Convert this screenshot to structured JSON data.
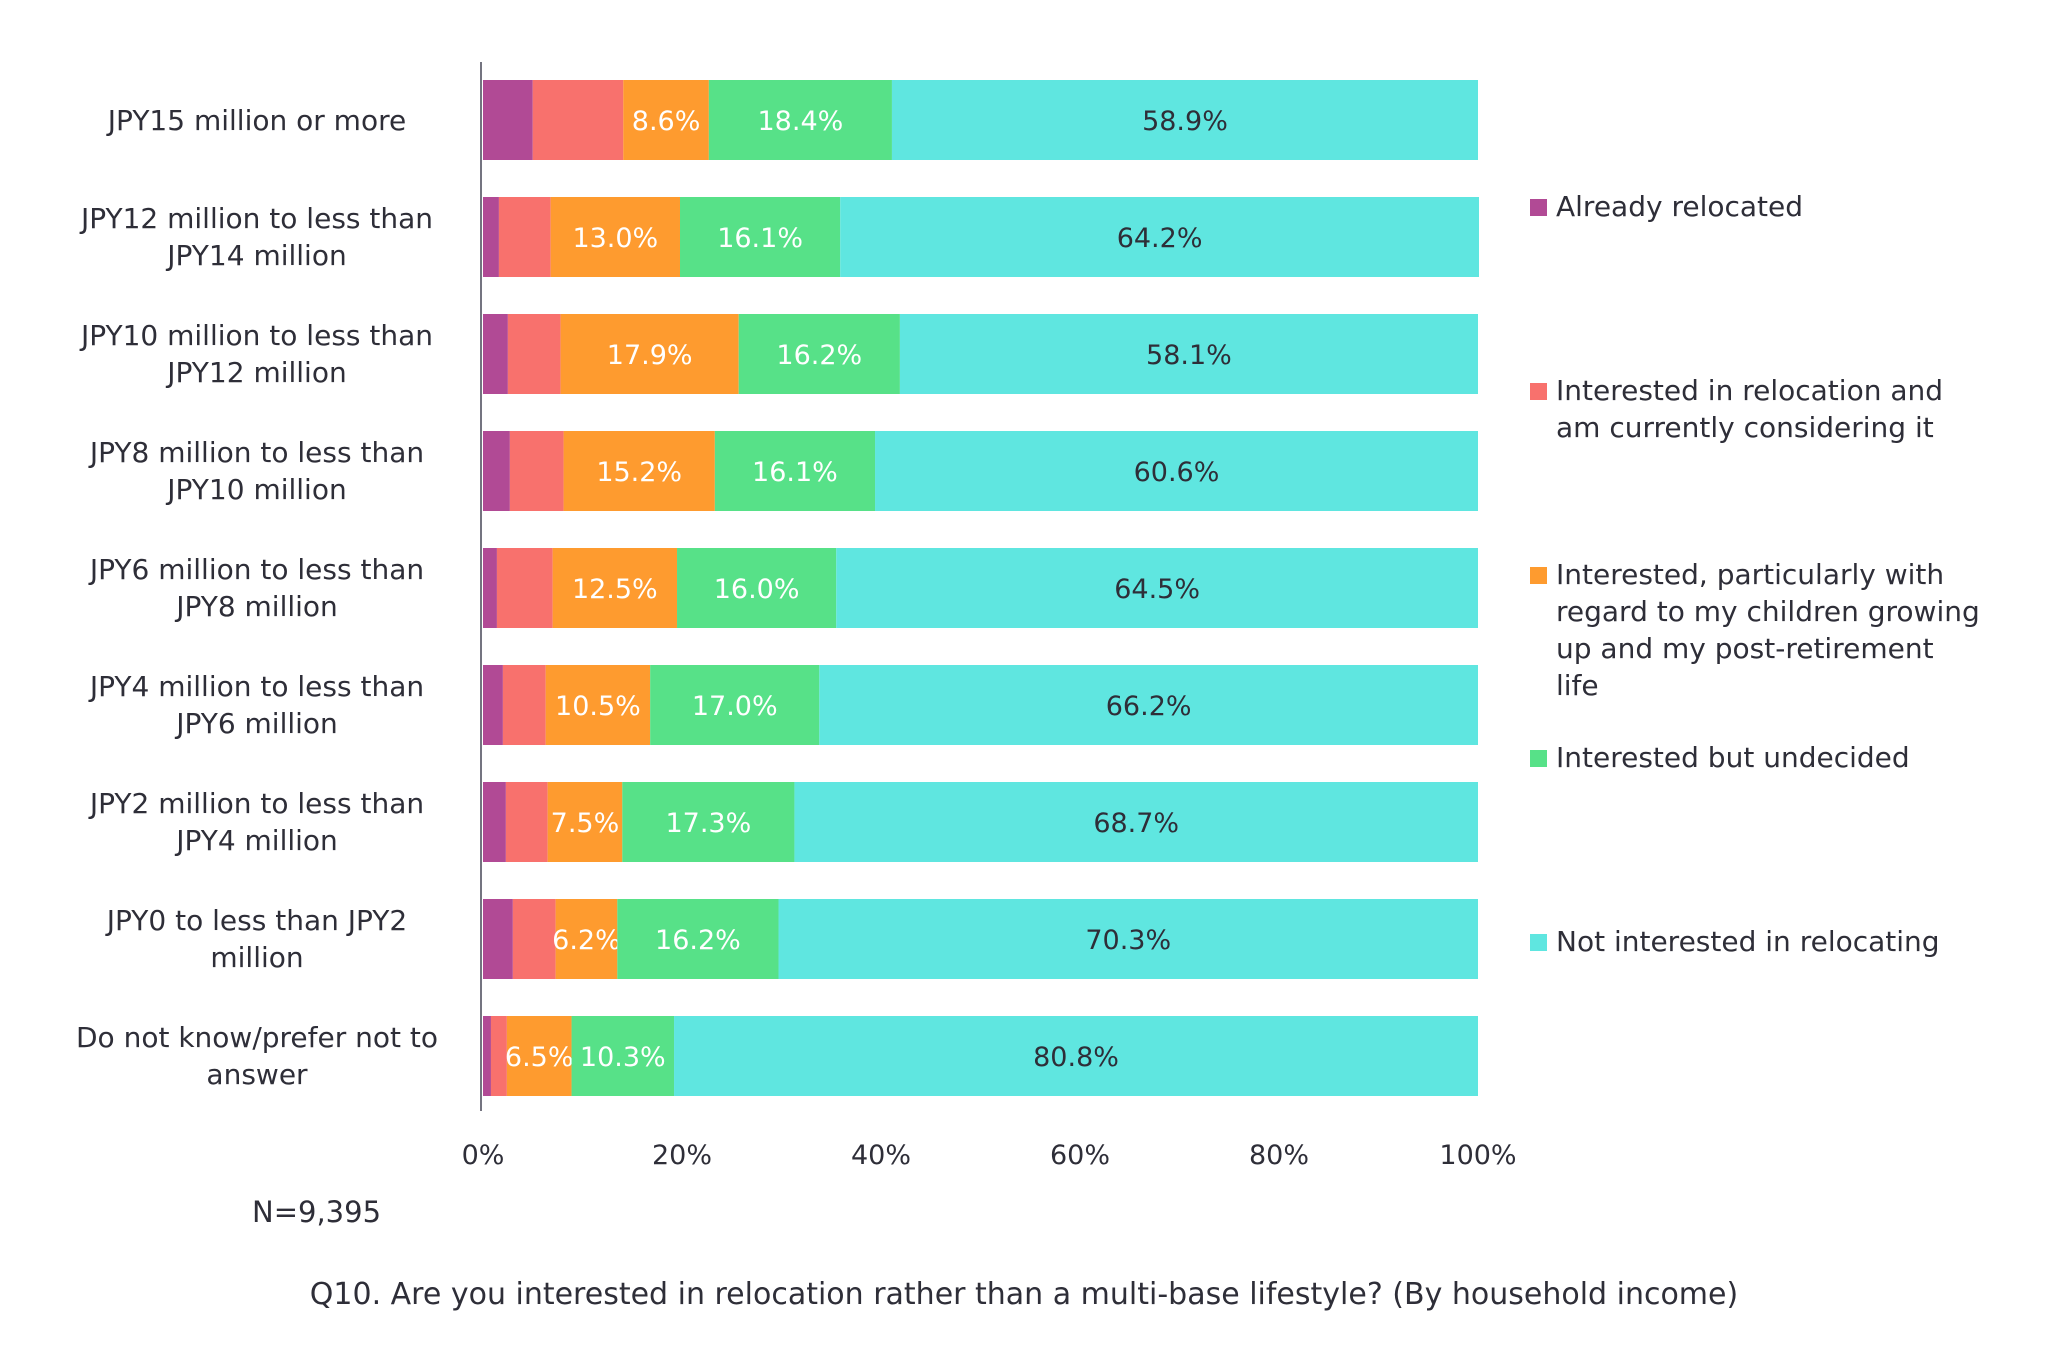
{
  "chart_data": {
    "type": "bar",
    "orientation": "horizontal",
    "stacked": true,
    "title": "Q10. Are you interested in relocation rather than a multi-base lifestyle? (By household income)",
    "note": "N=9,395",
    "categories": [
      "JPY15 million or more",
      "JPY12 million to less than JPY14 million",
      "JPY10 million to less than JPY12 million",
      "JPY8 million to less than JPY10 million",
      "JPY6 million to less than JPY8 million",
      "JPY4 million to less than JPY6 million",
      "JPY2 million to less than JPY4 million",
      "JPY0 to less than JPY2 million",
      "Do not know/prefer not to answer"
    ],
    "category_lines": [
      [
        "JPY15 million or more"
      ],
      [
        "JPY12 million to less than",
        "JPY14 million"
      ],
      [
        "JPY10 million to less than",
        "JPY12 million"
      ],
      [
        "JPY8 million to less than",
        "JPY10 million"
      ],
      [
        "JPY6 million to less than",
        "JPY8 million"
      ],
      [
        "JPY4 million to less than",
        "JPY6 million"
      ],
      [
        "JPY2 million to less than",
        "JPY4 million"
      ],
      [
        "JPY0 to less than JPY2",
        "million"
      ],
      [
        "Do not know/prefer not to",
        "answer"
      ]
    ],
    "series": [
      {
        "name": "Already relocated",
        "color": "#b14a95",
        "values": [
          5.0,
          1.6,
          2.5,
          2.7,
          1.4,
          2.0,
          2.3,
          3.0,
          0.8
        ],
        "labels": [
          "",
          "",
          "",
          "",
          "",
          "",
          "",
          "",
          ""
        ]
      },
      {
        "name": "Interested in relocation and am currently considering it",
        "legend_lines": [
          "Interested in relocation and",
          "am currently considering it"
        ],
        "color": "#f8716d",
        "values": [
          9.1,
          5.2,
          5.3,
          5.4,
          5.6,
          4.3,
          4.2,
          4.3,
          1.6
        ],
        "labels": [
          "",
          "",
          "",
          "",
          "",
          "",
          "",
          "",
          ""
        ]
      },
      {
        "name": "Interested, particularly with regard to my children growing up and my post-retirement life",
        "legend_lines": [
          "Interested, particularly with",
          "regard to my children growing",
          "up and my post-retirement",
          "life"
        ],
        "color": "#fe9b2f",
        "values": [
          8.6,
          13.0,
          17.9,
          15.2,
          12.5,
          10.5,
          7.5,
          6.2,
          6.5
        ],
        "labels": [
          "8.6%",
          "13.0%",
          "17.9%",
          "15.2%",
          "12.5%",
          "10.5%",
          "7.5%",
          "6.2%",
          "6.5%"
        ]
      },
      {
        "name": "Interested but undecided",
        "color": "#57e188",
        "values": [
          18.4,
          16.1,
          16.2,
          16.1,
          16.0,
          17.0,
          17.3,
          16.2,
          10.3
        ],
        "labels": [
          "18.4%",
          "16.1%",
          "16.2%",
          "16.1%",
          "16.0%",
          "17.0%",
          "17.3%",
          "16.2%",
          "10.3%"
        ]
      },
      {
        "name": "Not interested in relocating",
        "color": "#5fe6e0",
        "values": [
          58.9,
          64.2,
          58.1,
          60.6,
          64.5,
          66.2,
          68.7,
          70.3,
          80.8
        ],
        "labels": [
          "58.9%",
          "64.2%",
          "58.1%",
          "60.6%",
          "64.5%",
          "66.2%",
          "68.7%",
          "70.3%",
          "80.8%"
        ]
      }
    ],
    "x_ticks": [
      "0%",
      "20%",
      "40%",
      "60%",
      "80%",
      "100%"
    ],
    "xlim": [
      0,
      100
    ],
    "grid": false,
    "legend_position": "right"
  }
}
